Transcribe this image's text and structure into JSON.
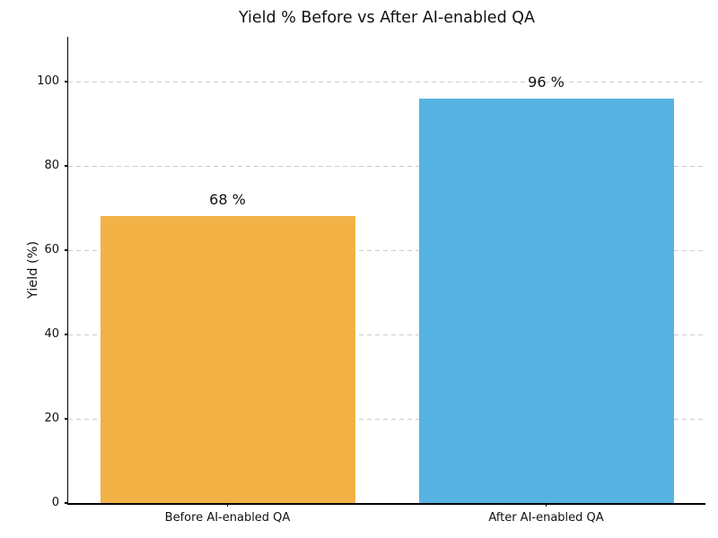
{
  "chart_data": {
    "type": "bar",
    "title": "Yield % Before vs After AI-enabled QA",
    "categories": [
      "Before AI-enabled QA",
      "After AI-enabled QA"
    ],
    "values": [
      68,
      96
    ],
    "value_labels": [
      "68 %",
      "96 %"
    ],
    "series_name": "Yield",
    "xlabel": "",
    "ylabel": "Yield (%)",
    "ylim": [
      0,
      110
    ],
    "yticks": [
      0,
      20,
      40,
      60,
      80,
      100
    ],
    "grid": "horizontal-dashed",
    "legend": "none",
    "bar_colors": [
      "#F2B245",
      "#57B3E2"
    ]
  },
  "colors": {
    "background": "#ffffff",
    "grid": "#cccccc",
    "axis": "#000000",
    "text": "#111111"
  }
}
